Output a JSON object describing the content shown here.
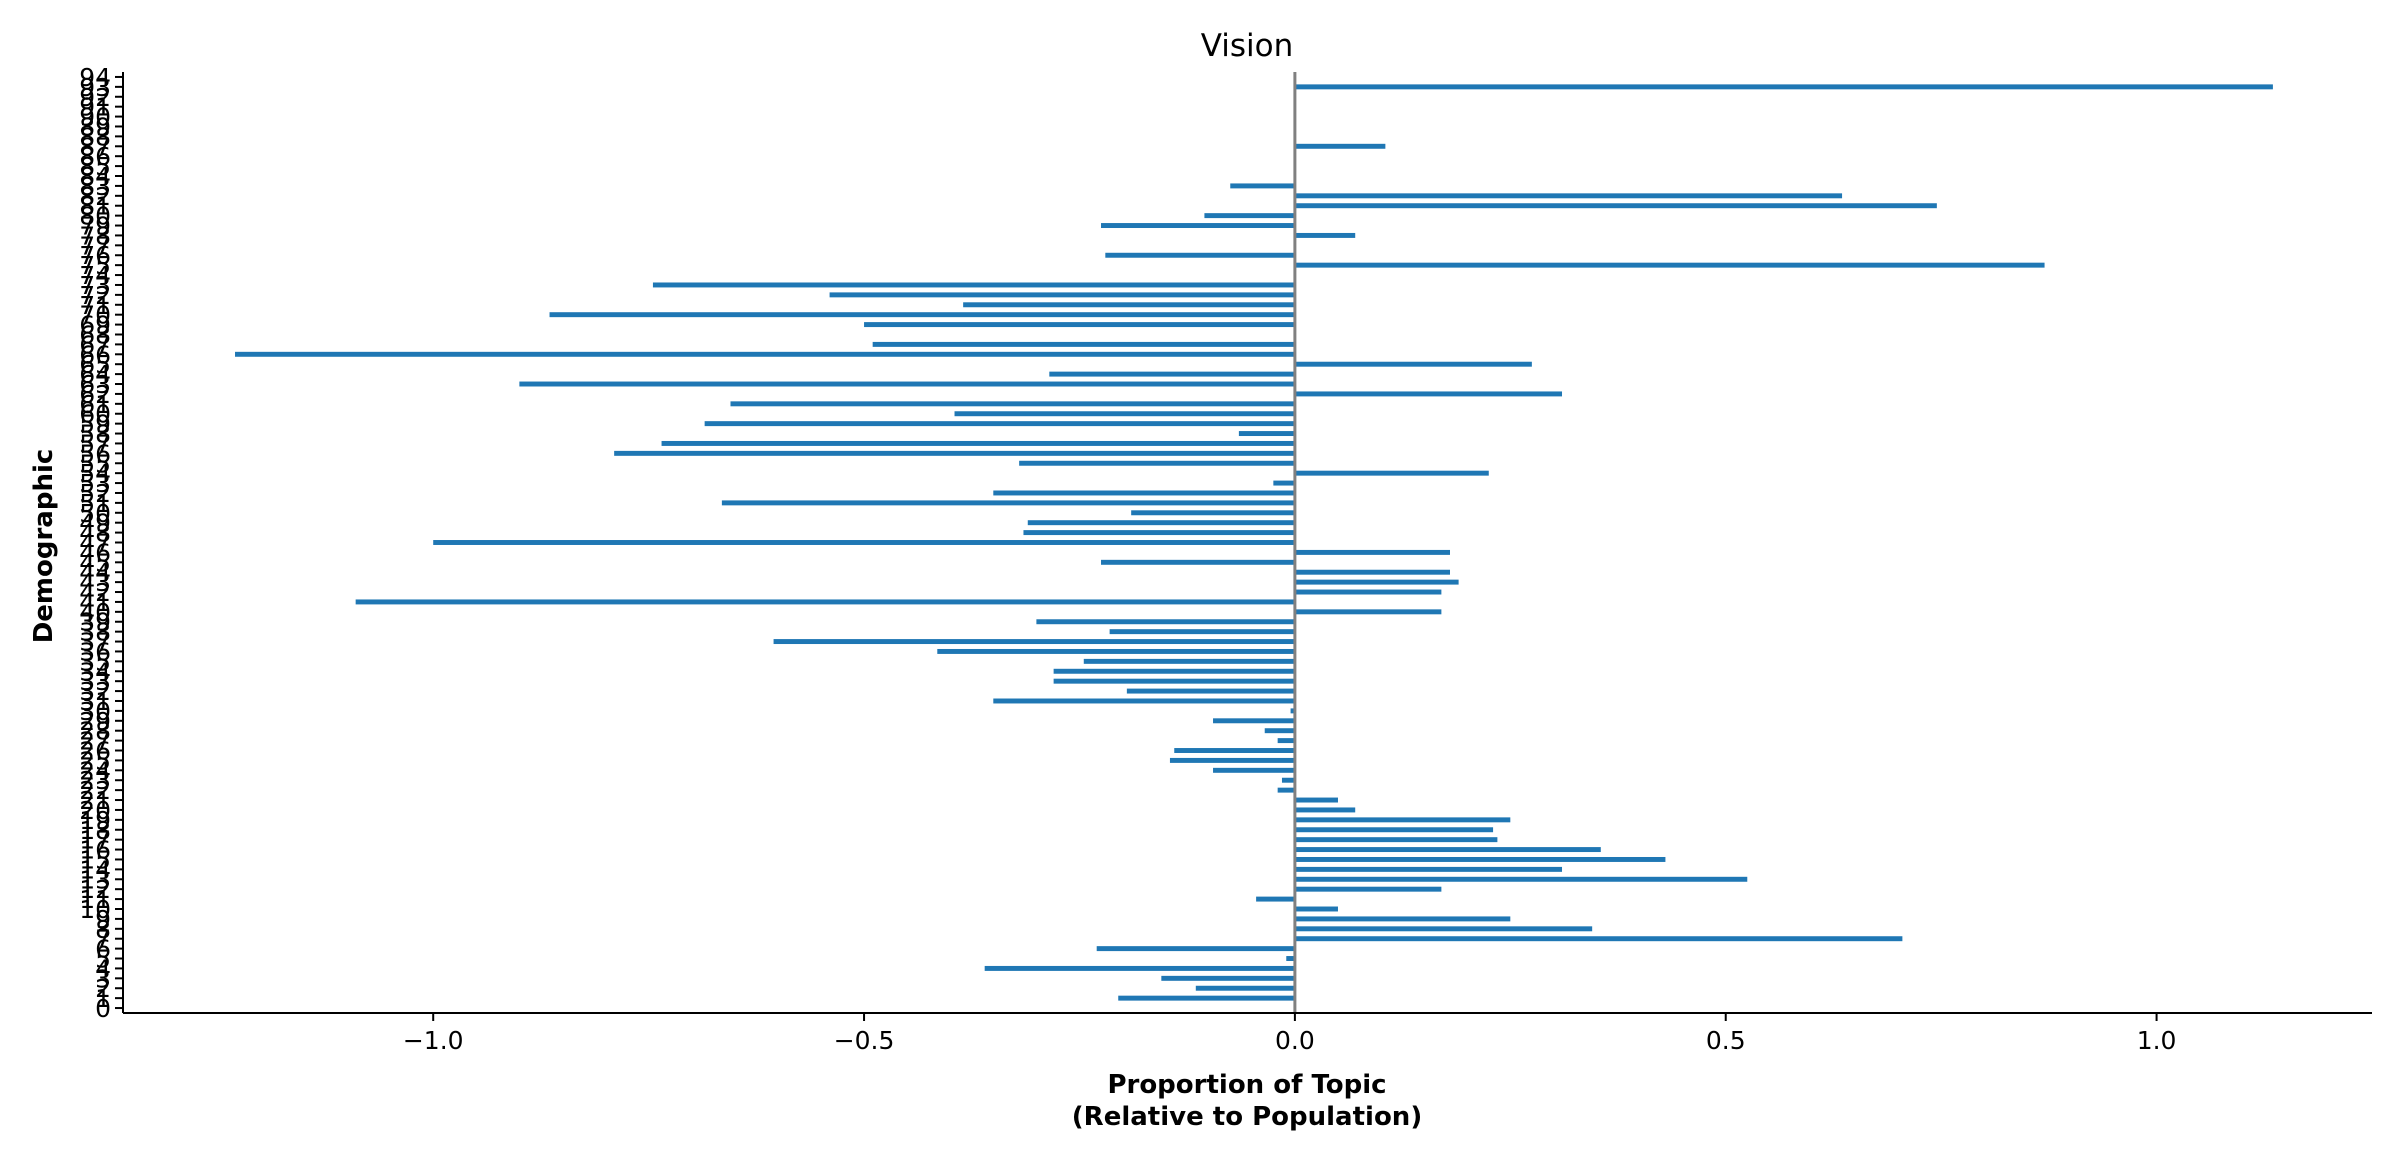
{
  "chart_data": {
    "type": "bar",
    "orientation": "horizontal",
    "title": "Vision",
    "xlabel_line1": "Proportion of Topic",
    "xlabel_line2": "(Relative to Population)",
    "ylabel": "Demographic",
    "xlim": [
      -1.36,
      1.25
    ],
    "ylim": [
      -0.5,
      94.5
    ],
    "xticks": [
      -1.0,
      -0.5,
      0.0,
      0.5,
      1.0
    ],
    "xtick_labels": [
      "−1.0",
      "−0.5",
      "0.0",
      "0.5",
      "1.0"
    ],
    "grid": false,
    "bar_color": "#1f77b4",
    "zero_line_color": "#808080",
    "categories": [
      0,
      1,
      2,
      3,
      4,
      5,
      6,
      7,
      8,
      9,
      10,
      11,
      12,
      13,
      14,
      15,
      16,
      17,
      18,
      19,
      20,
      21,
      22,
      23,
      24,
      25,
      26,
      27,
      28,
      29,
      30,
      31,
      32,
      33,
      34,
      35,
      36,
      37,
      38,
      39,
      40,
      41,
      42,
      43,
      44,
      45,
      46,
      47,
      48,
      49,
      50,
      51,
      52,
      53,
      54,
      55,
      56,
      57,
      58,
      59,
      60,
      61,
      62,
      63,
      64,
      65,
      66,
      67,
      68,
      69,
      70,
      71,
      72,
      73,
      74,
      75,
      76,
      77,
      78,
      79,
      80,
      81,
      82,
      83,
      84,
      85,
      86,
      87,
      88,
      89,
      90,
      91,
      92,
      93,
      94
    ],
    "values": [
      0,
      -0.205,
      -0.115,
      -0.155,
      -0.36,
      -0.01,
      -0.23,
      0.705,
      0.345,
      0.25,
      0.05,
      -0.045,
      0.17,
      0.525,
      0.31,
      0.43,
      0.355,
      0.235,
      0.23,
      0.25,
      0.07,
      0.05,
      -0.02,
      -0.015,
      -0.095,
      -0.145,
      -0.14,
      -0.02,
      -0.035,
      -0.095,
      -0.005,
      -0.35,
      -0.195,
      -0.28,
      -0.28,
      -0.245,
      -0.415,
      -0.605,
      -0.215,
      -0.3,
      0.17,
      -1.09,
      0.17,
      0.19,
      0.18,
      -0.225,
      0.18,
      -1.0,
      -0.315,
      -0.31,
      -0.19,
      -0.665,
      -0.35,
      -0.025,
      0.225,
      -0.32,
      -0.79,
      -0.735,
      -0.065,
      -0.685,
      -0.395,
      -0.655,
      0.31,
      -0.9,
      -0.285,
      0.275,
      -1.23,
      -0.49,
      0,
      -0.5,
      -0.865,
      -0.385,
      -0.54,
      -0.745,
      0,
      0.87,
      -0.22,
      0,
      0.07,
      -0.225,
      -0.105,
      0.745,
      0.635,
      -0.075,
      0,
      0,
      0,
      0.105,
      0,
      0,
      0,
      0,
      0,
      1.135,
      0
    ]
  }
}
